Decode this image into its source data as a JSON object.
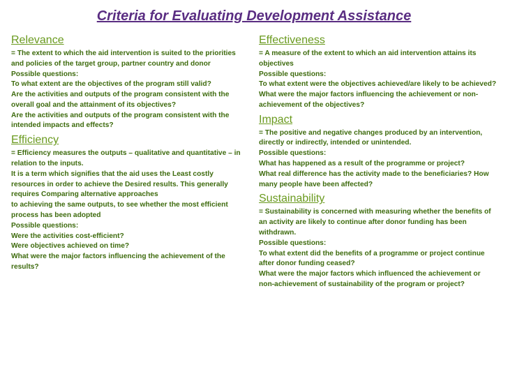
{
  "title": "Criteria for Evaluating Development Assistance",
  "colors": {
    "title": "#5a2d82",
    "heading": "#6a9a1f",
    "body": "#3e6b0e"
  },
  "left": [
    {
      "heading": "Relevance",
      "body": "= The extent to which the aid intervention is suited to the priorities and policies of the target group, partner country and donor\nPossible questions:\nTo what extent are the objectives of the program still valid?\nAre the activities and outputs of the program consistent with the overall goal and the attainment of its objectives?\nAre the activities and outputs of the program consistent with the intended impacts and effects?"
    },
    {
      "heading": "Efficiency",
      "body": "= Efficiency measures the outputs – qualitative and quantitative – in relation to the inputs.\nIt is a term which signifies that the aid uses the Least costly resources in order to achieve the Desired results. This generally requires Comparing alternative approaches\nto achieving the same outputs, to see whether the most efficient process has been adopted\nPossible questions:\nWere the activities cost-efficient?\nWere objectives achieved on time?\nWhat were the major factors influencing the achievement of the results?"
    }
  ],
  "right": [
    {
      "heading": "Effectiveness",
      "body": "= A measure of the extent to which an aid intervention attains its objectives\nPossible questions:\nTo what extent were the objectives achieved/are likely to be achieved?\nWhat were the major factors influencing the achievement or non-achievement of the objectives?"
    },
    {
      "heading": "Impact",
      "body": "= The positive and negative changes produced by an intervention, directly or indirectly, intended or unintended.\nPossible questions:\nWhat has happened as a result of the programme or project?\nWhat real difference has the activity made to the beneficiaries? How many people have been affected?"
    },
    {
      "heading": "Sustainability",
      "body": "= Sustainability is concerned with measuring whether the benefits of an activity are likely to continue after donor funding has been withdrawn.\nPossible questions:\nTo what extent did the benefits of a programme or project continue after donor funding ceased?\nWhat were the major factors which influenced the achievement or non-achievement of sustainability of the program or project?"
    }
  ]
}
